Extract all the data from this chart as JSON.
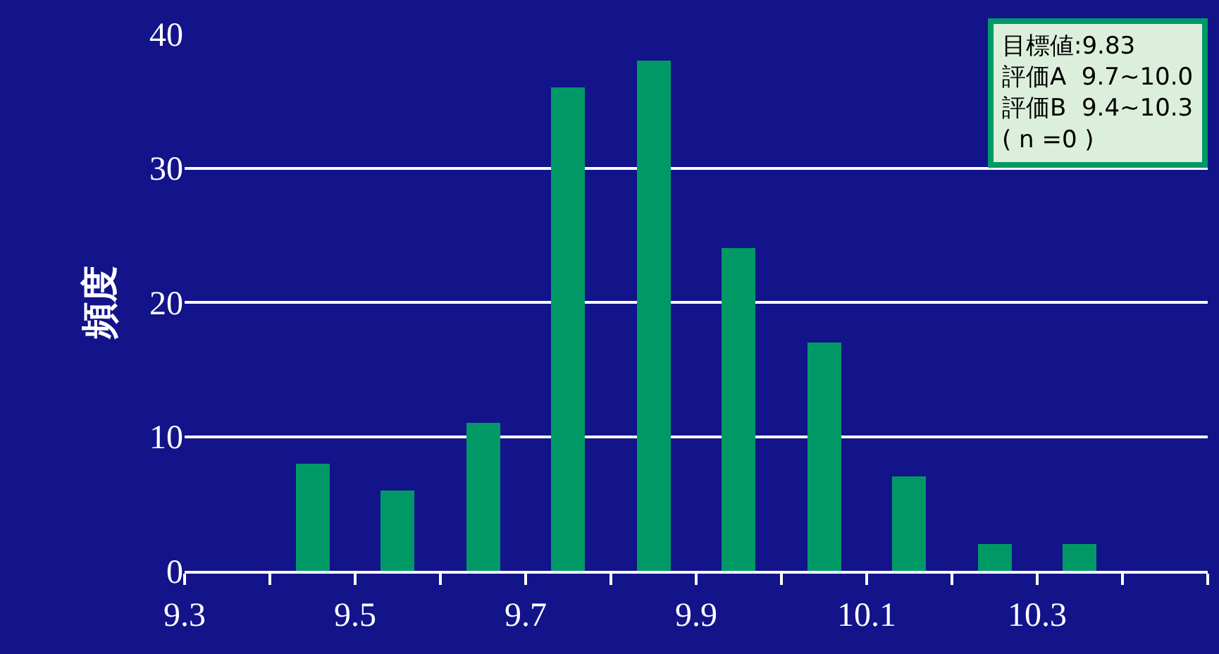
{
  "chart_data": {
    "type": "bar",
    "ylabel": "頻度",
    "x": [
      9.35,
      9.45,
      9.55,
      9.65,
      9.75,
      9.85,
      9.95,
      10.05,
      10.15,
      10.25,
      10.35,
      10.45
    ],
    "values": [
      0,
      8,
      6,
      11,
      36,
      38,
      24,
      17,
      7,
      2,
      2,
      0
    ],
    "color": "#009966",
    "xlim": [
      9.3,
      10.5
    ],
    "xticks": [
      9.3,
      {
        "value": 9.4,
        "label": null
      },
      9.5,
      {
        "value": 9.6,
        "label": null
      },
      9.7,
      {
        "value": 9.8,
        "label": null
      },
      9.9,
      {
        "value": 10.0,
        "label": null
      },
      10.1,
      {
        "value": 10.2,
        "label": null
      },
      10.3,
      {
        "value": 10.4,
        "label": null
      },
      {
        "value": 10.5,
        "label": null
      }
    ],
    "ylim": [
      0,
      40
    ],
    "yticks": [
      0,
      10,
      20,
      30,
      40
    ],
    "grid": "y",
    "annotations": [
      "目標値:9.83",
      "評価A  9.7~10.0",
      "評価B  9.4~10.3",
      "( n =0 )"
    ]
  }
}
